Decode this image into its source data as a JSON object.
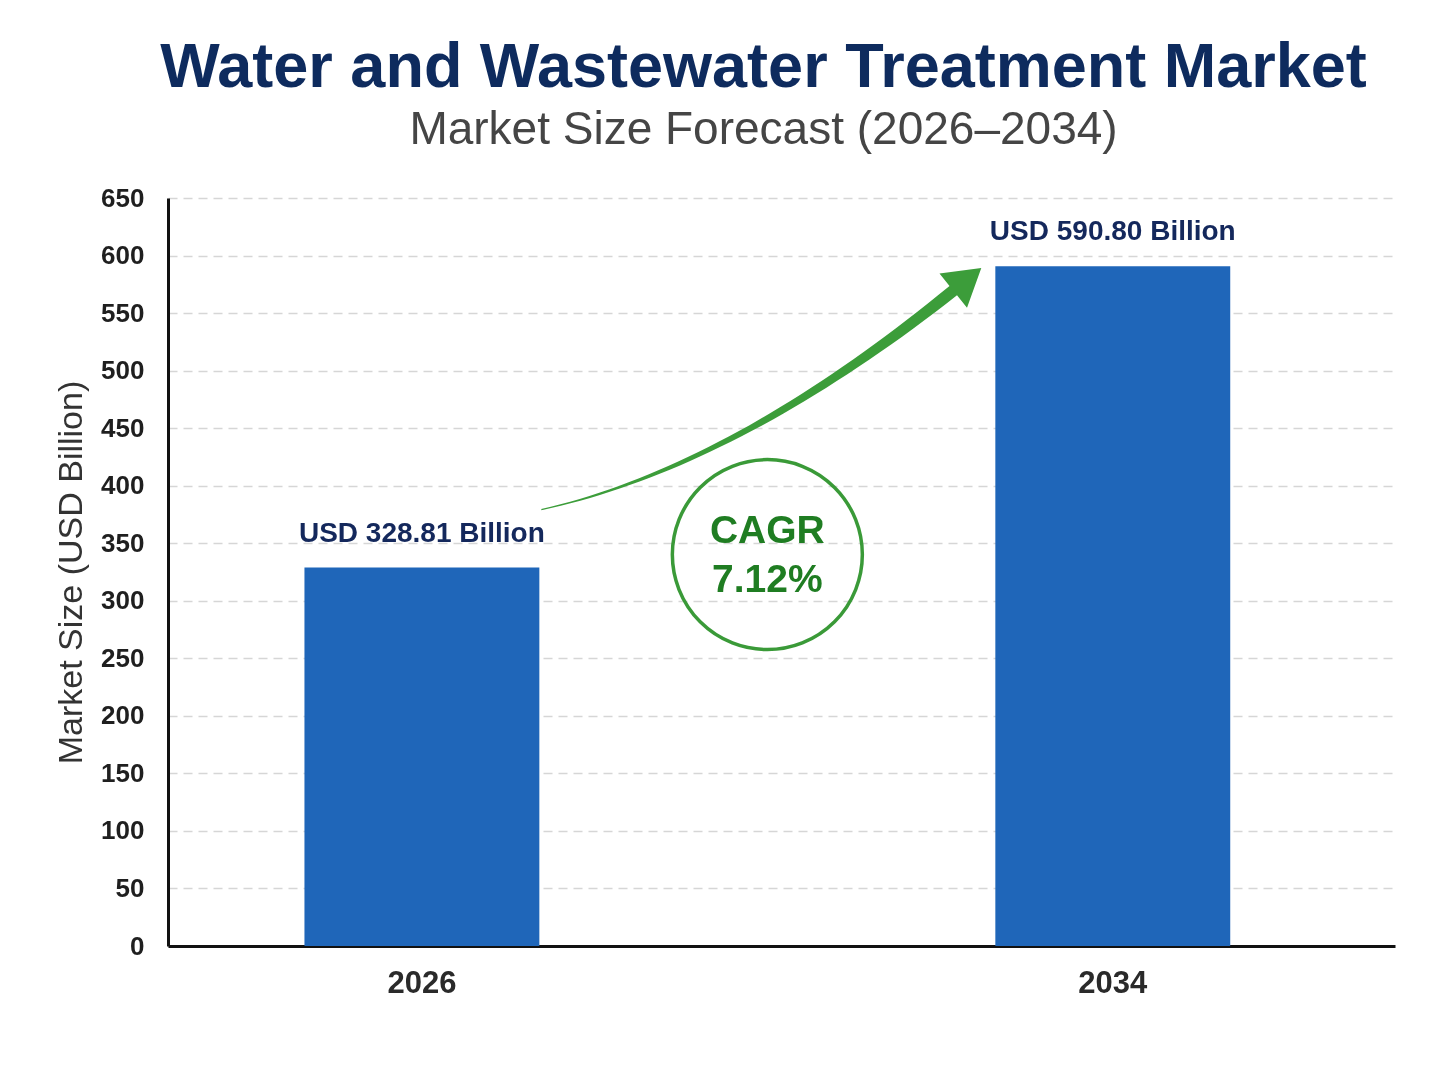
{
  "chart_data": {
    "type": "bar",
    "title": "Water and Wastewater Treatment Market",
    "subtitle": "Market Size Forecast (2026–2034)",
    "ylabel": "Market Size (USD Billion)",
    "categories": [
      "2026",
      "2034"
    ],
    "values": [
      328.81,
      590.8
    ],
    "value_labels": [
      "USD 328.81 Billion",
      "USD 590.80 Billion"
    ],
    "color": "#1f66b9",
    "ylim": [
      0,
      650
    ],
    "yticks": [
      0,
      50,
      100,
      150,
      200,
      250,
      300,
      350,
      400,
      450,
      500,
      550,
      600,
      650
    ],
    "grid": "y",
    "annotations": [
      "CAGR 7.12%"
    ]
  }
}
